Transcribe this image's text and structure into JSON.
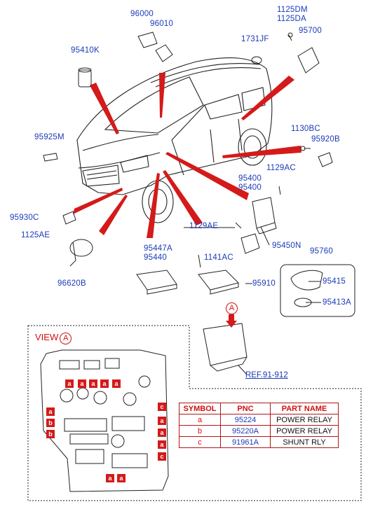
{
  "labels": {
    "p96000": "96000",
    "p96010": "96010",
    "p1125dm": "1125DM",
    "p1125da": "1125DA",
    "p95700": "95700",
    "p95410k": "95410K",
    "p1731jf": "1731JF",
    "p95925m": "95925M",
    "p1130bc": "1130BC",
    "p95920b": "95920B",
    "p1129ac_top": "1129AC",
    "p95400a": "95400",
    "p95400b": "95400",
    "p95930c": "95930C",
    "p1125ae": "1125AE",
    "p1129ae": "1129AE",
    "p95450n": "95450N",
    "p95447a": "95447A",
    "p95440": "95440",
    "p1141ac": "1141AC",
    "p95760": "95760",
    "p96620b": "96620B",
    "p95910": "95910",
    "p95415": "95415",
    "p95413a": "95413A"
  },
  "view": {
    "title": "VIEW",
    "marker": "A"
  },
  "callout_marker": "A",
  "reference": "REF.91-912",
  "table": {
    "headers": [
      "SYMBOL",
      "PNC",
      "PART NAME"
    ],
    "rows": [
      {
        "symbol": "a",
        "pnc": "95224",
        "name": "POWER RELAY"
      },
      {
        "symbol": "b",
        "pnc": "95220A",
        "name": "POWER RELAY"
      },
      {
        "symbol": "c",
        "pnc": "91961A",
        "name": "SHUNT RLY"
      }
    ]
  },
  "fuse_box_symbols": {
    "top_row": [
      "a",
      "a",
      "a",
      "a",
      "a"
    ],
    "left_col": [
      "a",
      "b",
      "b"
    ],
    "right_col": [
      "c",
      "a",
      "a",
      "a",
      "c"
    ],
    "bottom": [
      "a",
      "a"
    ]
  },
  "colors": {
    "label_blue": "#1a3bb8",
    "pointer_red": "#d41a1a",
    "line_gray": "#222222"
  }
}
